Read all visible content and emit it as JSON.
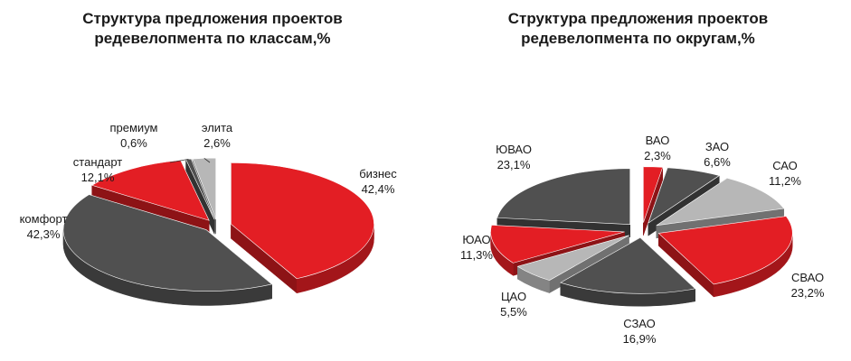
{
  "chart_data": [
    {
      "type": "pie",
      "title_lines": [
        "Структура  предложения проектов",
        "редевелопмента по классам,%"
      ],
      "colors": {
        "red": "#e31e24",
        "dark": "#505050",
        "light": "#b7b7b7"
      },
      "slices": [
        {
          "label": "бизнес",
          "value_text": "42,4%",
          "value": 42.4,
          "color": "red"
        },
        {
          "label": "комфорт",
          "value_text": "42,3%",
          "value": 42.3,
          "color": "dark"
        },
        {
          "label": "стандарт",
          "value_text": "12,1%",
          "value": 12.1,
          "color": "red"
        },
        {
          "label": "премиум",
          "value_text": "0,6%",
          "value": 0.6,
          "color": "dark"
        },
        {
          "label": "элита",
          "value_text": "2,6%",
          "value": 2.6,
          "color": "light"
        }
      ]
    },
    {
      "type": "pie",
      "title_lines": [
        "Структура  предложения проектов",
        "редевелопмента по округам,%"
      ],
      "colors": {
        "red": "#e31e24",
        "dark": "#505050",
        "light": "#b7b7b7"
      },
      "slices": [
        {
          "label": "ВАО",
          "value_text": "2,3%",
          "value": 2.3,
          "color": "red"
        },
        {
          "label": "ЗАО",
          "value_text": "6,6%",
          "value": 6.6,
          "color": "dark"
        },
        {
          "label": "САО",
          "value_text": "11,2%",
          "value": 11.2,
          "color": "light"
        },
        {
          "label": "СВАО",
          "value_text": "23,2%",
          "value": 23.2,
          "color": "red"
        },
        {
          "label": "СЗАО",
          "value_text": "16,9%",
          "value": 16.9,
          "color": "dark"
        },
        {
          "label": "ЦАО",
          "value_text": "5,5%",
          "value": 5.5,
          "color": "light"
        },
        {
          "label": "ЮАО",
          "value_text": "11,3%",
          "value": 11.3,
          "color": "red"
        },
        {
          "label": "ЮВАО",
          "value_text": "23,1%",
          "value": 23.1,
          "color": "dark"
        }
      ]
    }
  ]
}
